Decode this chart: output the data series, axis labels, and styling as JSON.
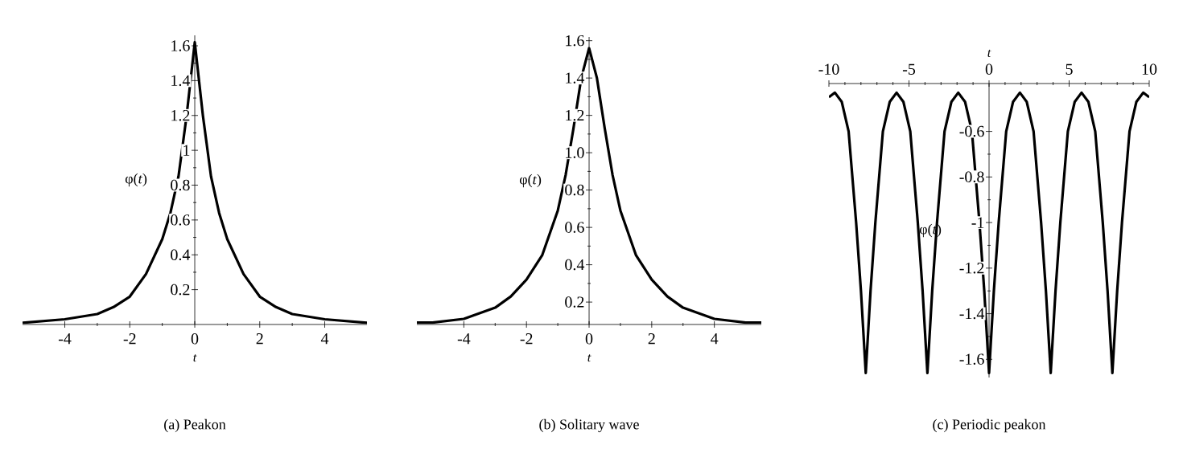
{
  "chart_data": [
    {
      "type": "line",
      "title": "(a)  Peakon",
      "xlabel": "t",
      "ylabel": "φ(*t*)",
      "color": "#000000",
      "x": [
        -5.3,
        -4,
        -3,
        -2.5,
        -2,
        -1.5,
        -1,
        -0.75,
        -0.5,
        -0.25,
        0,
        0.25,
        0.5,
        0.75,
        1,
        1.5,
        2,
        2.5,
        3,
        4,
        5.3
      ],
      "values": [
        0.01,
        0.03,
        0.06,
        0.1,
        0.16,
        0.29,
        0.49,
        0.64,
        0.85,
        1.2,
        1.62,
        1.2,
        0.85,
        0.64,
        0.49,
        0.29,
        0.16,
        0.1,
        0.06,
        0.03,
        0.01
      ],
      "xlim": [
        -5.3,
        5.3
      ],
      "ylim": [
        0,
        1.66
      ],
      "xticks": [
        -4,
        -2,
        0,
        2,
        4
      ],
      "yticks": [
        0.2,
        0.4,
        0.6,
        0.8,
        1,
        1.2,
        1.4,
        1.6
      ]
    },
    {
      "type": "line",
      "title": "(b)  Solitary wave",
      "xlabel": "t",
      "ylabel": "φ(*t*)",
      "color": "#000000",
      "x": [
        -5.5,
        -5,
        -4,
        -3,
        -2.5,
        -2,
        -1.5,
        -1,
        -0.75,
        -0.5,
        -0.25,
        0,
        0.25,
        0.5,
        0.75,
        1,
        1.5,
        2,
        2.5,
        3,
        4,
        5,
        5.5
      ],
      "values": [
        0.09,
        0.09,
        0.11,
        0.17,
        0.23,
        0.32,
        0.45,
        0.69,
        0.88,
        1.13,
        1.4,
        1.56,
        1.4,
        1.13,
        0.88,
        0.69,
        0.45,
        0.32,
        0.23,
        0.17,
        0.11,
        0.09,
        0.09
      ],
      "xlim": [
        -5.5,
        5.5
      ],
      "ylim": [
        0.08,
        1.62
      ],
      "xticks": [
        -4,
        -2,
        0,
        2,
        4
      ],
      "yticks": [
        0.2,
        0.4,
        0.6,
        0.8,
        {
          "value": 1,
          "label": "1.0"
        },
        1.2,
        1.4,
        1.6
      ]
    },
    {
      "type": "line",
      "title": "(c)  Periodic peakon",
      "xlabel": "t",
      "ylabel": "φ(*t*)",
      "color": "#000000",
      "x": [
        -10,
        -9.625,
        -9.2,
        -8.77,
        -8.3,
        -8.0,
        -7.7,
        -7.4,
        -7.1,
        -6.63,
        -6.2,
        -5.775,
        -5.35,
        -4.92,
        -4.45,
        -4.15,
        -3.85,
        -3.55,
        -3.25,
        -2.78,
        -2.35,
        -1.925,
        -1.5,
        -1.07,
        -0.6,
        -0.3,
        0,
        0.3,
        0.6,
        1.07,
        1.5,
        1.925,
        2.35,
        2.78,
        3.25,
        3.55,
        3.85,
        4.15,
        4.45,
        4.92,
        5.35,
        5.775,
        6.2,
        6.63,
        7.1,
        7.4,
        7.7,
        8.0,
        8.3,
        8.77,
        9.2,
        9.625,
        10
      ],
      "values": [
        -0.45,
        -0.43,
        -0.47,
        -0.6,
        -1.0,
        -1.3,
        -1.66,
        -1.3,
        -1.0,
        -0.6,
        -0.47,
        -0.43,
        -0.47,
        -0.6,
        -1.0,
        -1.3,
        -1.66,
        -1.3,
        -1.0,
        -0.6,
        -0.47,
        -0.43,
        -0.47,
        -0.6,
        -1.0,
        -1.3,
        -1.66,
        -1.3,
        -1.0,
        -0.6,
        -0.47,
        -0.43,
        -0.47,
        -0.6,
        -1.0,
        -1.3,
        -1.66,
        -1.3,
        -1.0,
        -0.6,
        -0.47,
        -0.43,
        -0.47,
        -0.6,
        -1.0,
        -1.3,
        -1.66,
        -1.3,
        -1.0,
        -0.6,
        -0.47,
        -0.43,
        -0.45
      ],
      "xlim": [
        -10,
        10
      ],
      "ylim": [
        -1.68,
        -0.39
      ],
      "xticks": [
        -10,
        -5,
        0,
        5,
        10
      ],
      "yticks": [
        -0.6,
        -0.8,
        -1,
        -1.2,
        -1.4,
        -1.6
      ]
    }
  ]
}
